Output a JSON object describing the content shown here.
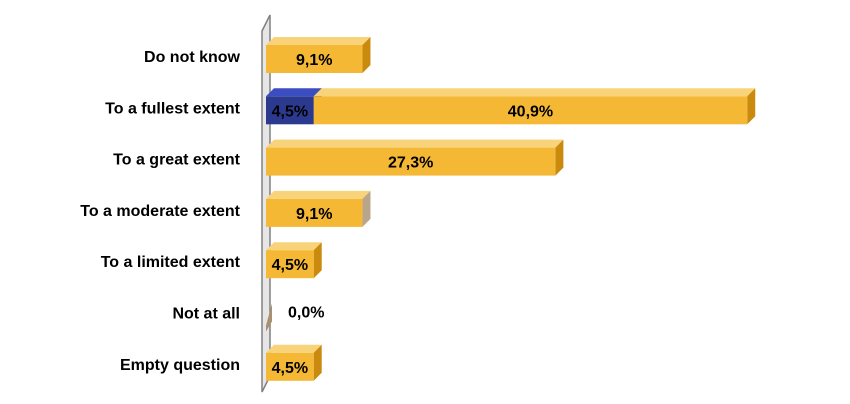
{
  "chart_data": {
    "type": "bar",
    "orientation": "horizontal",
    "style": "3d-stacked",
    "title": "",
    "xlabel": "",
    "ylabel": "",
    "grid": false,
    "legend": "none",
    "categories": [
      "Do not know",
      "To a fullest extent",
      "To a great extent",
      "To a moderate extent",
      "To a limited extent",
      "Not at all",
      "Empty question"
    ],
    "series": [
      {
        "color": "#2b3a8f",
        "values": [
          0,
          4.5,
          0,
          0,
          0,
          0,
          0
        ],
        "labels": [
          "",
          "4,5%",
          "",
          "",
          "",
          "",
          ""
        ]
      },
      {
        "color": "#f5b835",
        "values": [
          9.1,
          40.9,
          27.3,
          9.1,
          4.5,
          0.0,
          4.5
        ],
        "labels": [
          "9,1%",
          "40,9%",
          "27,3%",
          "9,1%",
          "4,5%",
          "0,0%",
          "4,5%"
        ]
      }
    ],
    "xlim": [
      0,
      45
    ],
    "colors": {
      "accent_top": "#f9d37a",
      "accent_side": "#c98a0d",
      "moderate_side": "#b8a58a",
      "zero_bar": "#a89070",
      "axis": "#808080"
    }
  }
}
